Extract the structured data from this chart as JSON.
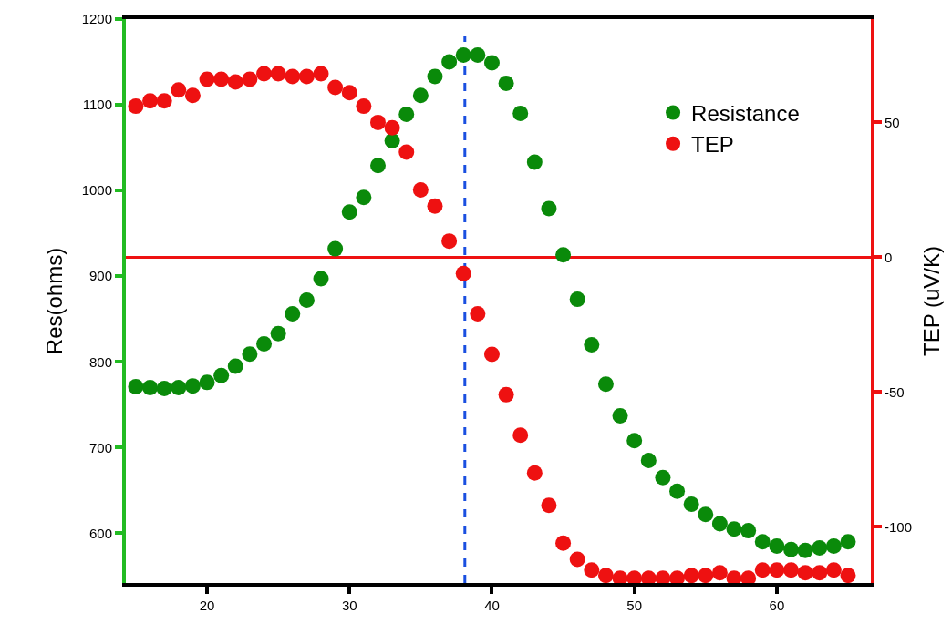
{
  "chart_data": {
    "type": "scatter",
    "ylabel": "Res(ohms)",
    "y2label": "TEP (uV/K)",
    "x": [
      15,
      16,
      17,
      18,
      19,
      20,
      21,
      22,
      23,
      24,
      25,
      26,
      27,
      28,
      29,
      30,
      31,
      32,
      33,
      34,
      35,
      36,
      37,
      38,
      39,
      40,
      41,
      42,
      43,
      44,
      45,
      46,
      47,
      48,
      49,
      50,
      51,
      52,
      53,
      54,
      55,
      56,
      57,
      58,
      59,
      60,
      61,
      62,
      63,
      64,
      65
    ],
    "series": [
      {
        "name": "Resistance",
        "color": "#0a8a0a",
        "values": [
          771,
          770,
          769,
          770,
          772,
          776,
          784,
          795,
          809,
          821,
          833,
          856,
          872,
          897,
          932,
          975,
          992,
          1029,
          1058,
          1089,
          1111,
          1133,
          1150,
          1158,
          1158,
          1149,
          1125,
          1090,
          1033,
          979,
          925,
          873,
          820,
          774,
          737,
          708,
          685,
          665,
          649,
          634,
          622,
          611,
          605,
          603,
          590,
          585,
          581,
          580,
          583,
          585,
          590
        ]
      },
      {
        "name": "TEP",
        "color": "#ee1111",
        "axis": "y2",
        "values": [
          56,
          58,
          58,
          62,
          60,
          66,
          66,
          65,
          66,
          68,
          68,
          67,
          67,
          68,
          63,
          61,
          56,
          50,
          48,
          39,
          25,
          19,
          6,
          -6,
          -21,
          -36,
          -51,
          -66,
          -80,
          -92,
          -106,
          -112,
          -116,
          -118,
          -119,
          -119,
          -119,
          -119,
          -119,
          -118,
          -118,
          -117,
          -119,
          -119,
          -116,
          -116,
          -116,
          -117,
          -117,
          -116,
          -118
        ]
      }
    ],
    "xlim": [
      14.3,
      66.6
    ],
    "xticks": [
      20,
      30,
      40,
      50,
      60
    ],
    "ylim": [
      542,
      1200
    ],
    "yticks": [
      600,
      700,
      800,
      900,
      1000,
      1100,
      1200
    ],
    "y2lim": [
      -120.8,
      88.3
    ],
    "y2ticks": [
      -100,
      -50,
      0,
      50
    ],
    "ref_lines": [
      {
        "axis": "y2",
        "value": 0,
        "color": "#ee1111",
        "line_style": "solid"
      },
      {
        "axis": "x",
        "value": 38.1,
        "color": "#1a4fe0",
        "line_style": "dashed"
      }
    ],
    "marker": "circle",
    "grid": false,
    "legend": "top right"
  }
}
